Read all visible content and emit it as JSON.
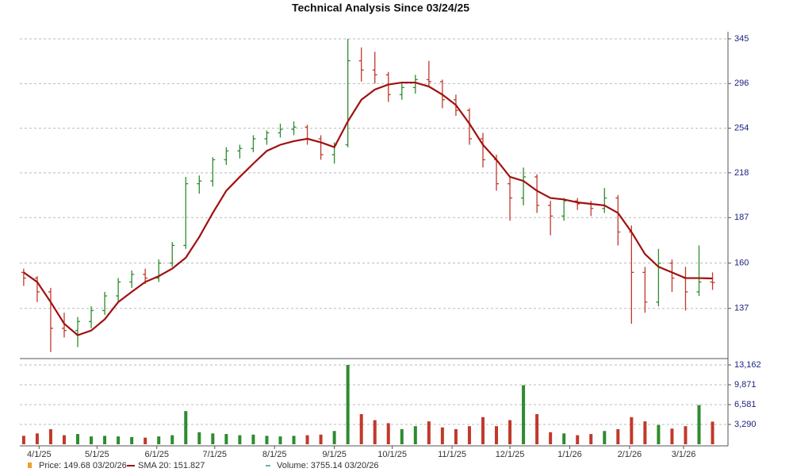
{
  "chart_data": {
    "type": "ohlc",
    "title": "Technical Analysis Since 03/24/25",
    "x": [
      "3/24/25",
      "3/31/25",
      "4/7/25",
      "4/14/25",
      "4/21/25",
      "4/28/25",
      "5/5/25",
      "5/12/25",
      "5/19/25",
      "5/26/25",
      "6/2/25",
      "6/9/25",
      "6/16/25",
      "6/23/25",
      "6/30/25",
      "7/7/25",
      "7/14/25",
      "7/21/25",
      "7/28/25",
      "8/4/25",
      "8/11/25",
      "8/18/25",
      "8/25/25",
      "9/1/25",
      "9/8/25",
      "9/15/25",
      "9/22/25",
      "9/29/25",
      "10/6/25",
      "10/13/25",
      "10/20/25",
      "10/27/25",
      "11/3/25",
      "11/10/25",
      "11/17/25",
      "11/24/25",
      "12/1/25",
      "12/8/25",
      "12/15/25",
      "12/22/25",
      "12/29/25",
      "1/5/26",
      "1/12/26",
      "1/19/26",
      "1/26/26",
      "2/2/26",
      "2/9/26",
      "2/16/26",
      "2/23/26",
      "3/2/26",
      "3/9/26",
      "3/16/26"
    ],
    "open": [
      155,
      152,
      145,
      128,
      127,
      131,
      136,
      143,
      150,
      154,
      152,
      160,
      170,
      210,
      212,
      228,
      235,
      237,
      245,
      250,
      253,
      255,
      245,
      232,
      240,
      320,
      310,
      305,
      285,
      292,
      300,
      298,
      280,
      270,
      245,
      228,
      210,
      200,
      215,
      195,
      188,
      198,
      196,
      193,
      200,
      178,
      155,
      140,
      160,
      152,
      145,
      150
    ],
    "high": [
      157,
      153,
      147,
      135,
      133,
      138,
      145,
      152,
      156,
      157,
      162,
      172,
      215,
      216,
      230,
      238,
      240,
      248,
      252,
      258,
      260,
      257,
      248,
      242,
      345,
      335,
      330,
      308,
      296,
      305,
      320,
      300,
      285,
      272,
      250,
      232,
      215,
      222,
      217,
      198,
      200,
      200,
      198,
      207,
      202,
      182,
      158,
      168,
      162,
      158,
      170,
      155
    ],
    "low": [
      148,
      140,
      118,
      124,
      120,
      128,
      134,
      140,
      147,
      149,
      150,
      158,
      168,
      203,
      208,
      224,
      229,
      234,
      240,
      246,
      248,
      240,
      228,
      225,
      238,
      298,
      296,
      278,
      280,
      286,
      292,
      272,
      265,
      240,
      222,
      205,
      185,
      195,
      190,
      176,
      185,
      192,
      188,
      190,
      170,
      130,
      135,
      138,
      145,
      136,
      143,
      146
    ],
    "close": [
      152,
      145,
      128,
      127,
      131,
      136,
      143,
      150,
      154,
      152,
      160,
      170,
      210,
      212,
      228,
      235,
      237,
      245,
      250,
      253,
      255,
      245,
      232,
      240,
      320,
      310,
      305,
      285,
      292,
      300,
      298,
      280,
      270,
      245,
      228,
      210,
      200,
      215,
      195,
      188,
      198,
      196,
      193,
      200,
      178,
      155,
      140,
      160,
      152,
      145,
      150,
      149.68
    ],
    "sma": [
      155,
      150,
      140,
      130,
      125,
      127,
      132,
      140,
      145,
      150,
      153,
      157,
      163,
      175,
      190,
      205,
      215,
      225,
      235,
      240,
      243,
      245,
      242,
      238,
      260,
      280,
      290,
      295,
      297,
      297,
      293,
      285,
      275,
      258,
      240,
      228,
      215,
      212,
      205,
      200,
      199,
      197,
      196,
      195,
      190,
      178,
      165,
      158,
      155,
      152,
      152,
      151.827
    ],
    "volume": [
      1400,
      1800,
      2500,
      1500,
      1700,
      1300,
      1400,
      1300,
      1200,
      1100,
      1300,
      1500,
      5500,
      2000,
      1800,
      1700,
      1500,
      1600,
      1400,
      1300,
      1400,
      1500,
      1600,
      2200,
      13162,
      5000,
      4000,
      3500,
      2500,
      3000,
      3800,
      2800,
      2500,
      3000,
      4500,
      3000,
      4000,
      9800,
      5000,
      2000,
      1800,
      1500,
      1700,
      2200,
      2500,
      4500,
      3800,
      3200,
      2600,
      3000,
      6500,
      3755.14
    ],
    "up_color": "#2e8b2e",
    "down_color": "#c0392b",
    "sma_color": "#a01010",
    "xlim": [
      "3/22/25",
      "3/24/26"
    ],
    "xticks": [
      "4/1/25",
      "5/1/25",
      "6/1/25",
      "7/1/25",
      "8/1/25",
      "9/1/25",
      "10/1/25",
      "11/1/25",
      "12/1/25",
      "1/1/26",
      "2/1/26",
      "3/1/26"
    ],
    "ylim": [
      116,
      353.5
    ],
    "log_y": true,
    "yticks": [
      137,
      160,
      187,
      218,
      254,
      296,
      345
    ],
    "y2lim": [
      0,
      13820
    ],
    "y2ticks": [
      {
        "value": 3290,
        "label": "3,290"
      },
      {
        "value": 6581,
        "label": "6,581"
      },
      {
        "value": 9871,
        "label": "9,871"
      },
      {
        "value": 13162,
        "label": "13,162"
      }
    ],
    "grid": true,
    "legend": [
      {
        "label": "Price: 149.68  03/20/26",
        "color": "#f0a030"
      },
      {
        "label": "SMA 20: 151.827",
        "color": "#a01010"
      },
      {
        "label": "Volume: 3755.14  03/20/26",
        "color": "#2aa198"
      }
    ]
  }
}
